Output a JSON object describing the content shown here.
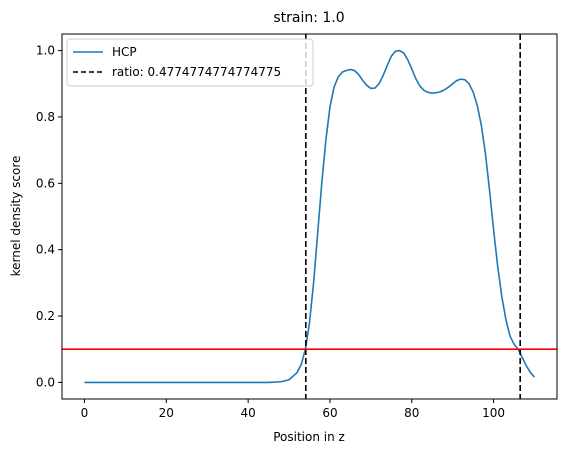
{
  "chart_data": {
    "type": "line",
    "title": "strain: 1.0",
    "xlabel": "Position in z",
    "ylabel": "kernel density score",
    "xlim": [
      -5.5,
      115.5
    ],
    "ylim": [
      -0.05,
      1.05
    ],
    "xticks": [
      0,
      20,
      40,
      60,
      80,
      100
    ],
    "yticks": [
      0.0,
      0.2,
      0.4,
      0.6,
      0.8,
      1.0
    ],
    "xtick_labels": [
      "0",
      "20",
      "40",
      "60",
      "80",
      "100"
    ],
    "ytick_labels": [
      "0.0",
      "0.2",
      "0.4",
      "0.6",
      "0.8",
      "1.0"
    ],
    "grid": false,
    "legend_position": "upper-left",
    "series": [
      {
        "name": "HCP",
        "color": "#1f77b4",
        "points": [
          [
            0,
            0.0
          ],
          [
            10,
            0.0
          ],
          [
            20,
            0.0
          ],
          [
            30,
            0.0
          ],
          [
            40,
            0.0
          ],
          [
            45,
            0.0
          ],
          [
            48,
            0.002
          ],
          [
            50,
            0.008
          ],
          [
            52,
            0.03
          ],
          [
            53,
            0.055
          ],
          [
            54,
            0.1
          ],
          [
            55,
            0.18
          ],
          [
            56,
            0.3
          ],
          [
            57,
            0.45
          ],
          [
            58,
            0.6
          ],
          [
            59,
            0.73
          ],
          [
            60,
            0.83
          ],
          [
            61,
            0.89
          ],
          [
            62,
            0.92
          ],
          [
            63,
            0.935
          ],
          [
            64,
            0.94
          ],
          [
            65,
            0.943
          ],
          [
            66,
            0.94
          ],
          [
            67,
            0.928
          ],
          [
            68,
            0.91
          ],
          [
            69,
            0.895
          ],
          [
            70,
            0.886
          ],
          [
            71,
            0.887
          ],
          [
            72,
            0.9
          ],
          [
            73,
            0.925
          ],
          [
            74,
            0.955
          ],
          [
            75,
            0.983
          ],
          [
            76,
            0.998
          ],
          [
            77,
            1.0
          ],
          [
            78,
            0.993
          ],
          [
            79,
            0.973
          ],
          [
            80,
            0.945
          ],
          [
            81,
            0.915
          ],
          [
            82,
            0.893
          ],
          [
            83,
            0.88
          ],
          [
            84,
            0.874
          ],
          [
            85,
            0.872
          ],
          [
            86,
            0.873
          ],
          [
            87,
            0.876
          ],
          [
            88,
            0.882
          ],
          [
            89,
            0.89
          ],
          [
            90,
            0.9
          ],
          [
            91,
            0.91
          ],
          [
            92,
            0.914
          ],
          [
            93,
            0.912
          ],
          [
            94,
            0.9
          ],
          [
            95,
            0.875
          ],
          [
            96,
            0.835
          ],
          [
            97,
            0.775
          ],
          [
            98,
            0.69
          ],
          [
            99,
            0.58
          ],
          [
            100,
            0.46
          ],
          [
            101,
            0.35
          ],
          [
            102,
            0.26
          ],
          [
            103,
            0.19
          ],
          [
            104,
            0.14
          ],
          [
            105,
            0.115
          ],
          [
            106,
            0.1
          ],
          [
            107,
            0.075
          ],
          [
            108,
            0.05
          ],
          [
            109,
            0.03
          ],
          [
            110,
            0.016
          ]
        ]
      }
    ],
    "vertical_lines": [
      {
        "name": "ratio: 0.4774774774774775",
        "x": 54.1,
        "color": "#000000",
        "style": "dashed"
      },
      {
        "x": 106.5,
        "color": "#000000",
        "style": "dashed"
      }
    ],
    "horizontal_lines": [
      {
        "y": 0.1,
        "color": "#ff0000",
        "style": "solid"
      }
    ],
    "legend": [
      {
        "label": "HCP",
        "color": "#1f77b4",
        "style": "solid"
      },
      {
        "label": "ratio: 0.4774774774774775",
        "color": "#000000",
        "style": "dashed"
      }
    ]
  }
}
